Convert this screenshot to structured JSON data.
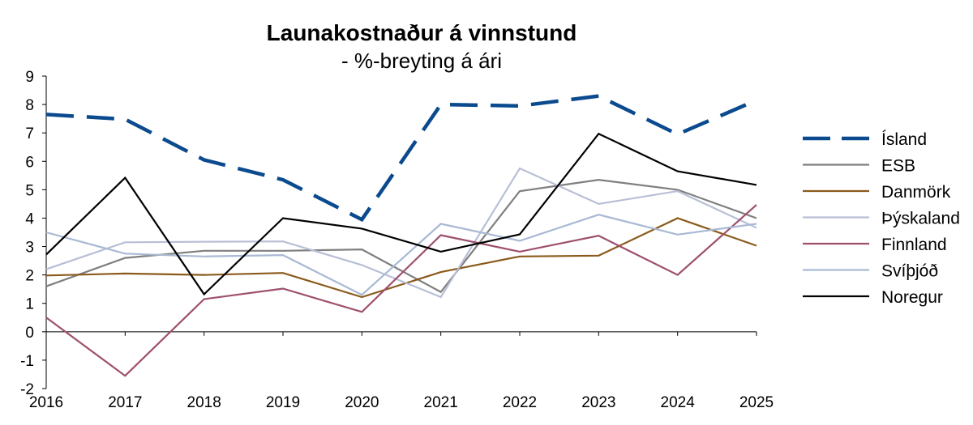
{
  "chart_data": {
    "type": "line",
    "title": "Launakostnaður á vinnstund",
    "subtitle": "- %-breyting á ári",
    "xlabel": "",
    "ylabel": "",
    "categories": [
      "2016",
      "2017",
      "2018",
      "2019",
      "2020",
      "2021",
      "2022",
      "2023",
      "2024",
      "2025"
    ],
    "ylim": [
      -2,
      9
    ],
    "yticks": [
      "-2",
      "-1",
      "0",
      "1",
      "2",
      "3",
      "4",
      "5",
      "6",
      "7",
      "8",
      "9"
    ],
    "grid": false,
    "legend_position": "right",
    "series": [
      {
        "name": "Ísland",
        "color": "#0B4A8E",
        "dashed": true,
        "values": [
          7.65,
          7.48,
          6.05,
          5.35,
          3.95,
          8.0,
          7.95,
          8.3,
          6.95,
          8.15
        ]
      },
      {
        "name": "ESB",
        "color": "#7F7F7F",
        "dashed": false,
        "values": [
          1.6,
          2.6,
          2.85,
          2.85,
          2.9,
          1.4,
          4.95,
          5.35,
          5.0,
          4.0
        ]
      },
      {
        "name": "Danmörk",
        "color": "#8B5A1B",
        "dashed": false,
        "values": [
          1.98,
          2.05,
          2.0,
          2.07,
          1.22,
          2.1,
          2.65,
          2.68,
          4.0,
          3.03
        ]
      },
      {
        "name": "Þýskaland",
        "color": "#B8BFD6",
        "dashed": false,
        "values": [
          2.2,
          3.15,
          3.17,
          3.18,
          2.35,
          1.22,
          5.75,
          4.5,
          4.95,
          3.66
        ]
      },
      {
        "name": "Finnland",
        "color": "#9E4F6E",
        "dashed": false,
        "values": [
          0.5,
          -1.55,
          1.15,
          1.52,
          0.7,
          3.4,
          2.82,
          3.38,
          2.0,
          4.47
        ]
      },
      {
        "name": "Svíþjóð",
        "color": "#A9B9D4",
        "dashed": false,
        "values": [
          3.5,
          2.75,
          2.65,
          2.7,
          1.3,
          3.8,
          3.2,
          4.12,
          3.42,
          3.8
        ]
      },
      {
        "name": "Noregur",
        "color": "#000000",
        "dashed": false,
        "values": [
          2.72,
          5.42,
          1.32,
          4.0,
          3.63,
          2.82,
          3.43,
          6.97,
          5.65,
          5.17
        ]
      }
    ]
  }
}
